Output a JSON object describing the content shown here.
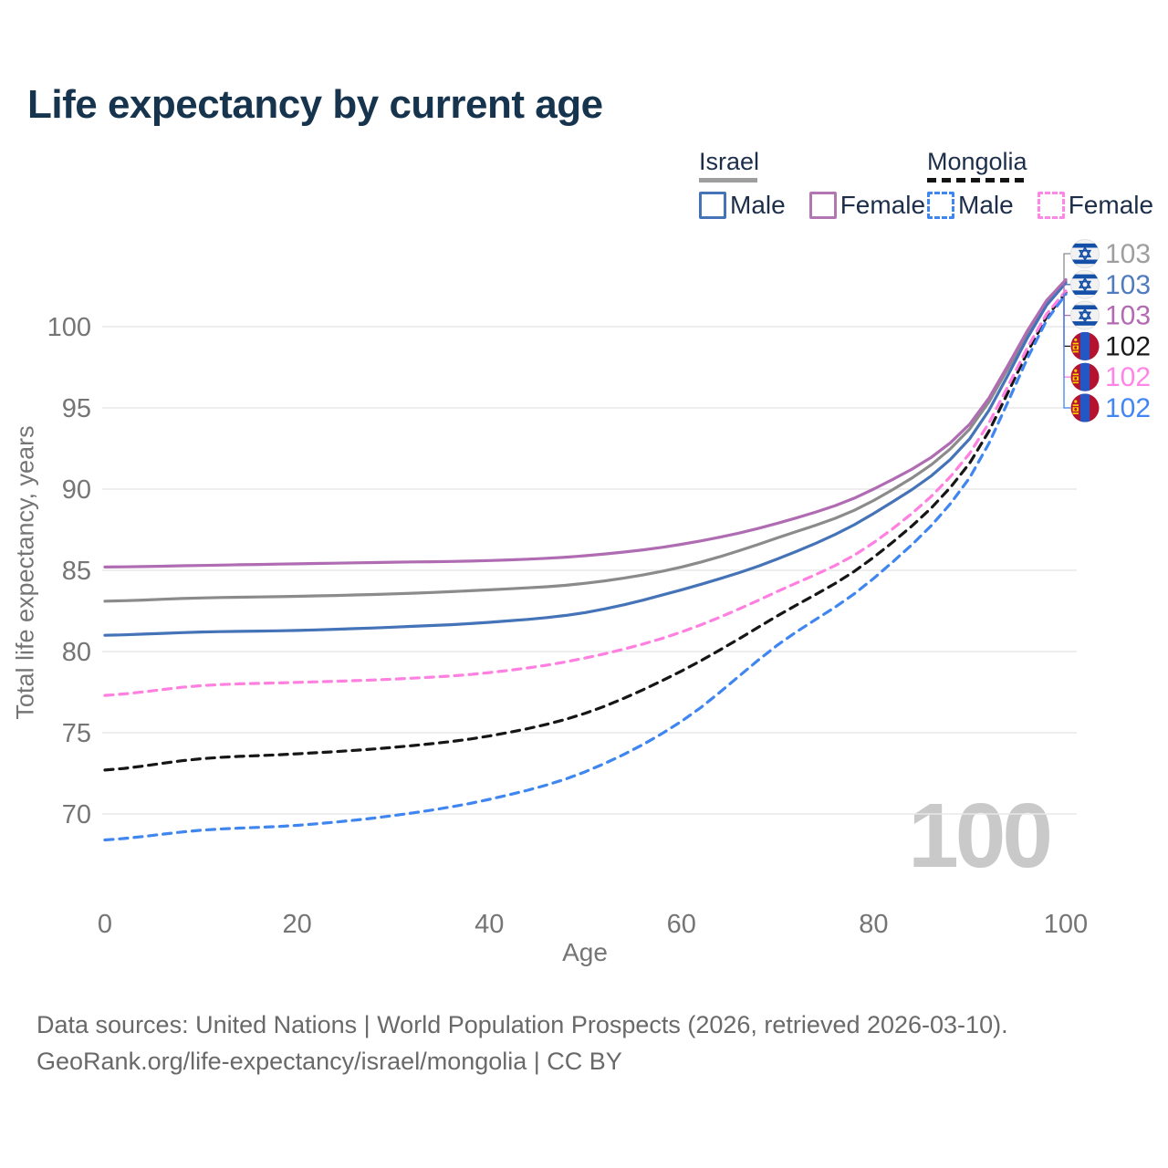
{
  "title": "Life expectancy by current age",
  "legend": {
    "groups": [
      {
        "country": "Israel",
        "underline_color": "#9e9e9e",
        "underline_style": "solid",
        "items": [
          {
            "label": "Male",
            "color": "#4473b8",
            "dashed": false
          },
          {
            "label": "Female",
            "color": "#b277b2",
            "dashed": false
          }
        ]
      },
      {
        "country": "Mongolia",
        "underline_color": "#141414",
        "underline_style": "dashed",
        "items": [
          {
            "label": "Male",
            "color": "#3f86f0",
            "dashed": true
          },
          {
            "label": "Female",
            "color": "#ff85e6",
            "dashed": true
          }
        ]
      }
    ]
  },
  "chart_data": {
    "type": "line",
    "title": "Life expectancy by current age",
    "xlabel": "Age",
    "ylabel": "Total life expectancy, years",
    "x_ticks": [
      0,
      20,
      40,
      60,
      80,
      100
    ],
    "y_ticks": [
      70,
      75,
      80,
      85,
      90,
      95,
      100
    ],
    "xlim": [
      0,
      100
    ],
    "ylim": [
      67,
      104
    ],
    "grid": "horizontal-only",
    "legend_position": "top-right",
    "age_counter": "100",
    "ages": [
      0,
      10,
      20,
      30,
      40,
      50,
      60,
      70,
      80,
      90,
      100
    ],
    "series": [
      {
        "name": "Israel",
        "country": "Israel",
        "sex": "both",
        "color": "#8b8b8b",
        "dashed": false,
        "values": [
          83.1,
          83.3,
          83.4,
          83.55,
          83.8,
          84.2,
          85.2,
          87.0,
          89.3,
          93.7,
          102.8
        ],
        "end_label": "103"
      },
      {
        "name": "Israel Male",
        "country": "Israel",
        "sex": "male",
        "color": "#4473b8",
        "dashed": false,
        "values": [
          81.0,
          81.2,
          81.3,
          81.5,
          81.8,
          82.4,
          83.8,
          85.7,
          88.5,
          93.1,
          102.7
        ],
        "end_label": "103"
      },
      {
        "name": "Israel Female",
        "country": "Israel",
        "sex": "female",
        "color": "#b06cb2",
        "dashed": false,
        "values": [
          85.2,
          85.3,
          85.4,
          85.5,
          85.6,
          85.9,
          86.6,
          87.9,
          90.0,
          94.0,
          102.9
        ],
        "end_label": "103"
      },
      {
        "name": "Mongolia",
        "country": "Mongolia",
        "sex": "both",
        "color": "#161616",
        "dashed": true,
        "values": [
          72.7,
          73.4,
          73.7,
          74.1,
          74.8,
          76.2,
          78.8,
          82.2,
          85.8,
          91.6,
          102.1
        ],
        "end_label": "102"
      },
      {
        "name": "Mongolia Female",
        "country": "Mongolia",
        "sex": "female",
        "color": "#ff80e0",
        "dashed": true,
        "values": [
          77.3,
          77.9,
          78.1,
          78.3,
          78.7,
          79.6,
          81.2,
          83.7,
          86.7,
          92.2,
          102.2
        ],
        "end_label": "102"
      },
      {
        "name": "Mongolia Male",
        "country": "Mongolia",
        "sex": "male",
        "color": "#3f86f0",
        "dashed": true,
        "values": [
          68.4,
          69.0,
          69.3,
          69.9,
          70.9,
          72.6,
          75.7,
          80.4,
          84.5,
          90.7,
          102.0
        ],
        "end_label": "102"
      }
    ],
    "right_labels": [
      {
        "flag": "israel",
        "value": "103",
        "text_color": "#9e9e9e",
        "series_index": 0
      },
      {
        "flag": "israel",
        "value": "103",
        "text_color": "#4f7cbe",
        "series_index": 1
      },
      {
        "flag": "israel",
        "value": "103",
        "text_color": "#b36ab3",
        "series_index": 2
      },
      {
        "flag": "mongolia",
        "value": "102",
        "text_color": "#1a1a1a",
        "series_index": 3
      },
      {
        "flag": "mongolia",
        "value": "102",
        "text_color": "#ff85e6",
        "series_index": 4
      },
      {
        "flag": "mongolia",
        "value": "102",
        "text_color": "#4285f4",
        "series_index": 5
      }
    ]
  },
  "footer": {
    "line1": "Data sources: United Nations | World Population Prospects (2026, retrieved 2026-03-10).",
    "line2": "GeoRank.org/life-expectancy/israel/mongolia | CC BY"
  }
}
